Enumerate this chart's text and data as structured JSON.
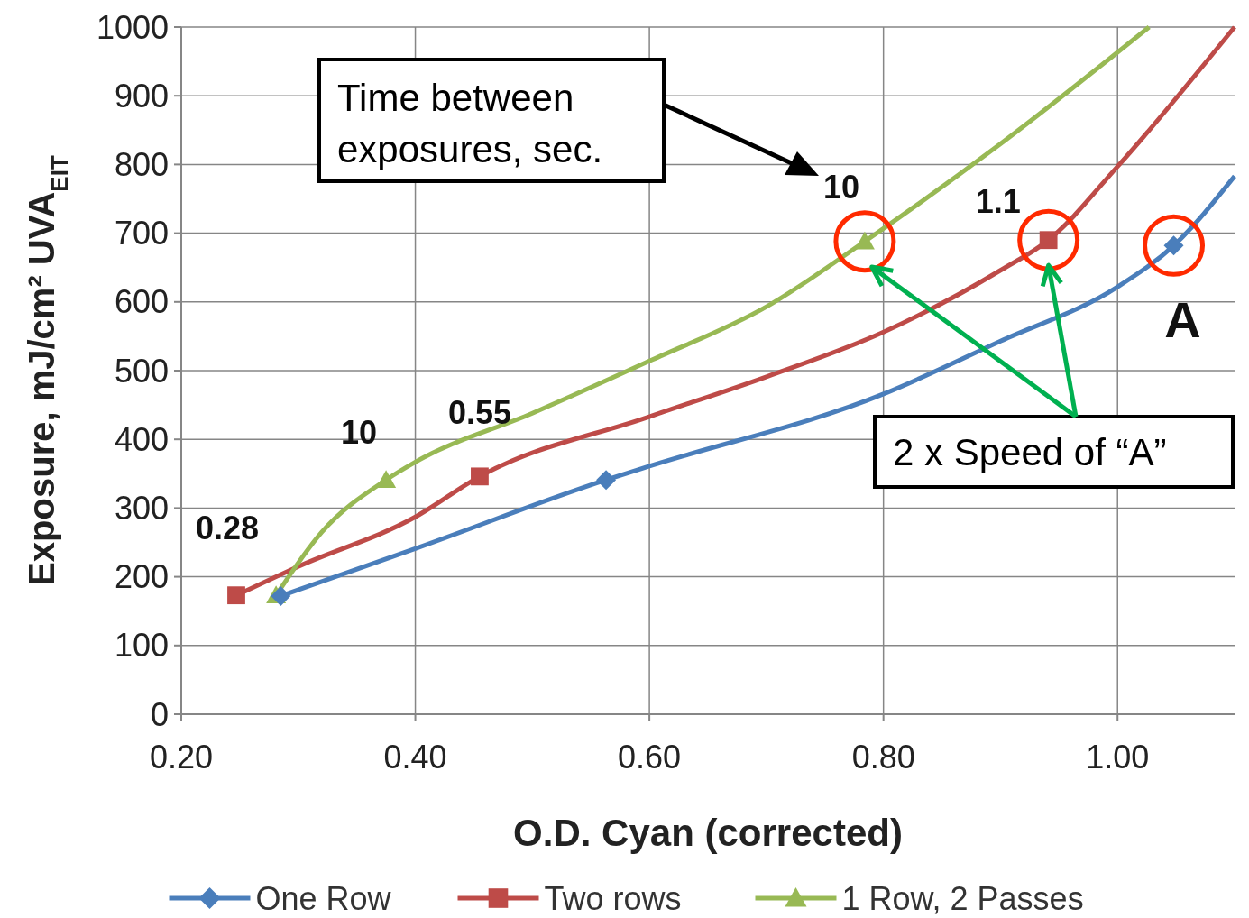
{
  "chart_data": {
    "type": "line",
    "xlabel": "O.D. Cyan (corrected)",
    "ylabel": "Exposure, mJ/cm² UVA$_{EIT}$",
    "xlim": [
      0.2,
      1.1
    ],
    "ylim": [
      0,
      1000
    ],
    "xticks": [
      {
        "value": 0.2,
        "label": "0.20"
      },
      {
        "value": 0.4,
        "label": "0.40"
      },
      {
        "value": 0.6,
        "label": "0.60"
      },
      {
        "value": 0.8,
        "label": "0.80"
      },
      {
        "value": 1.0,
        "label": "1.00"
      }
    ],
    "yticks": [
      0,
      100,
      200,
      300,
      400,
      500,
      600,
      700,
      800,
      900,
      1000
    ],
    "grid": true,
    "legend": "bottom",
    "series": [
      {
        "color": "#4a7ebb",
        "x": [
          0.285,
          0.4,
          0.563,
          0.6,
          0.8,
          0.9,
          1.0,
          1.048,
          1.1
        ],
        "values": [
          172,
          241,
          341,
          361,
          466,
          543,
          622,
          682,
          783
        ]
      },
      {
        "color": "#be4b48",
        "x": [
          0.247,
          0.3,
          0.4,
          0.455,
          0.6,
          0.7,
          0.8,
          0.9,
          0.941,
          1.0,
          1.1
        ],
        "values": [
          173,
          215,
          287,
          346,
          433,
          491,
          556,
          646,
          690,
          797,
          1000
        ]
      },
      {
        "color": "#98b954",
        "x": [
          0.281,
          0.32,
          0.375,
          0.4,
          0.5,
          0.6,
          0.7,
          0.784,
          0.9,
          1.027
        ],
        "values": [
          173,
          265,
          341,
          367,
          438,
          514,
          593,
          688,
          830,
          1000
        ]
      },
      {
        "type": "scatter",
        "name": "One Row",
        "color": "#4a7ebb",
        "marker": "diamond",
        "x": [
          0.285,
          0.563,
          1.048
        ],
        "values": [
          172,
          341,
          682
        ]
      },
      {
        "type": "scatter",
        "name": "Two rows",
        "color": "#be4b48",
        "marker": "square",
        "x": [
          0.247,
          0.455,
          0.941
        ],
        "values": [
          173,
          346,
          690
        ]
      },
      {
        "type": "scatter",
        "name": "1 Row, 2 Passes",
        "color": "#98b954",
        "marker": "triangle",
        "x": [
          0.281,
          0.375,
          0.784
        ],
        "values": [
          173,
          341,
          688
        ]
      }
    ],
    "annotations": [
      {
        "text": "0.28",
        "x": 0.247,
        "y": 173
      },
      {
        "text": "10",
        "x": 0.375,
        "y": 341
      },
      {
        "text": "0.55",
        "x": 0.455,
        "y": 346
      },
      {
        "text": "10",
        "x": 0.784,
        "y": 688
      },
      {
        "text": "1.1",
        "x": 0.941,
        "y": 690
      },
      {
        "text": "A",
        "x": 1.048,
        "y": 682
      },
      "Time between exposures, sec.",
      {
        "text": "2 x Speed of “A”",
        "x": 0.79,
        "y": 651
      }
    ]
  }
}
